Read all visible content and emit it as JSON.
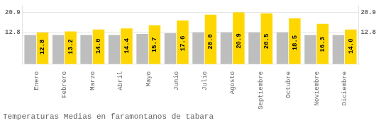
{
  "chart_data": {
    "type": "bar",
    "title": "Temperaturas Medias en faramontanos de tabara",
    "categories": [
      "Enero",
      "Febrero",
      "Marzo",
      "Abril",
      "Mayo",
      "Junio",
      "Julio",
      "Agosto",
      "Septiembre",
      "Octubre",
      "Noviembre",
      "Diciembre"
    ],
    "series": [
      {
        "color": "#BEBEBE",
        "values": [
          11.8,
          11.8,
          11.8,
          11.8,
          12.2,
          12.5,
          12.8,
          12.8,
          12.8,
          12.8,
          11.8,
          11.8
        ]
      },
      {
        "color": "#FFD700",
        "values": [
          12.8,
          13.2,
          14.0,
          14.4,
          15.7,
          17.6,
          20.0,
          20.9,
          20.5,
          18.5,
          16.3,
          14.0
        ],
        "data_labels": true,
        "value_labels": [
          "12.8",
          "13.2",
          "14.0",
          "14.4",
          "15.7",
          "17.6",
          "20.0",
          "20.9",
          "20.5",
          "18.5",
          "16.3",
          "14.0"
        ]
      }
    ],
    "ylim": [
      0,
      23.5
    ],
    "yticks": [
      12.8,
      20.9
    ],
    "y2lim": [
      0,
      23.5
    ],
    "y2ticks": [
      12.8,
      20.9
    ],
    "grid": true
  }
}
